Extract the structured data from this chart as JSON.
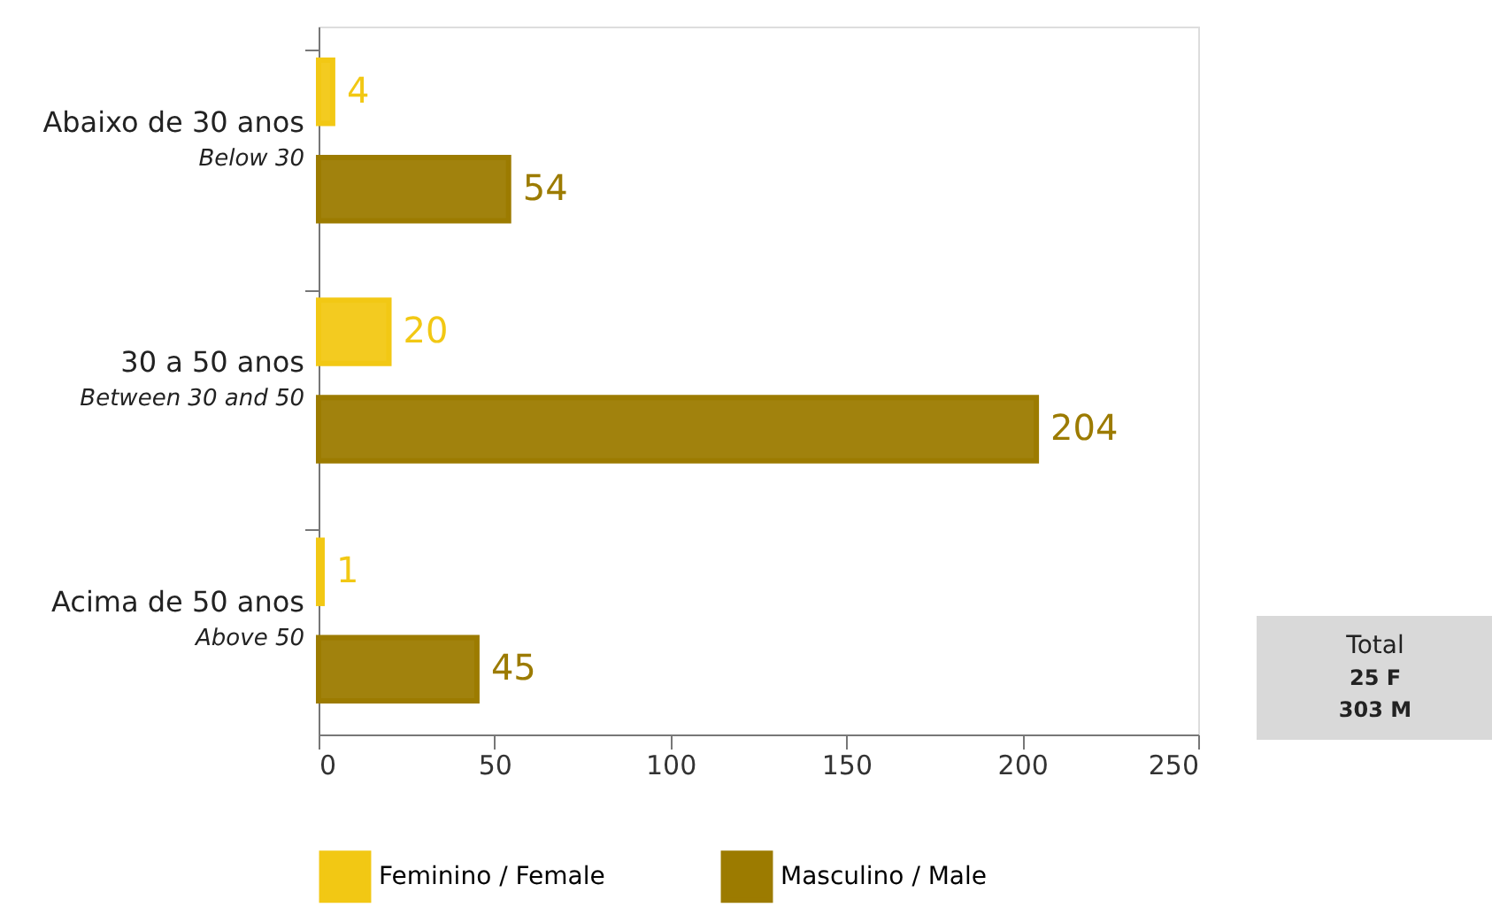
{
  "chart_data": {
    "type": "bar",
    "orientation": "horizontal",
    "categories": [
      "Abaixo de 30 anos\nBelow 30",
      "30 a 50 anos\nBetween 30 and 50",
      "Acima de 50 anos\nAbove 50"
    ],
    "series": [
      {
        "name": "Feminino / Female",
        "color": "#f2c814",
        "values": [
          4,
          20,
          1
        ]
      },
      {
        "name": "Masculino / Male",
        "color": "#9c7b00",
        "values": [
          54,
          204,
          45
        ]
      }
    ],
    "xlim": [
      0,
      250
    ],
    "xticks": [
      0,
      50,
      100,
      150,
      200,
      250
    ],
    "grid": false,
    "legend": "bottom",
    "data_labels": true,
    "annotations": [
      "Total",
      "25 F",
      "303 M"
    ]
  }
}
